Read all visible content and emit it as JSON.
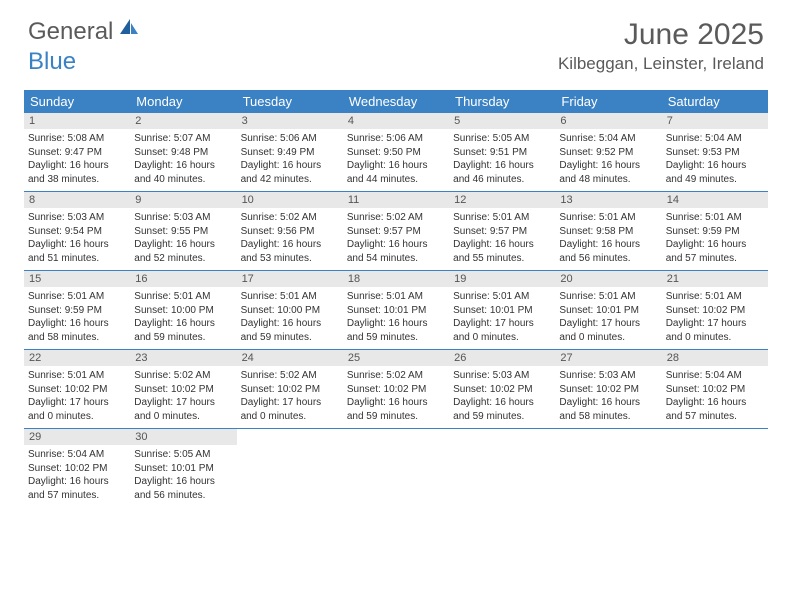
{
  "logo": {
    "text_general": "General",
    "text_blue": "Blue"
  },
  "title": {
    "month_year": "June 2025",
    "location": "Kilbeggan, Leinster, Ireland"
  },
  "colors": {
    "header_bg": "#3b82c4",
    "daynum_bg": "#e8e8e8",
    "text_dark": "#333333",
    "text_gray": "#5a5a5a",
    "logo_blue": "#3b82c4"
  },
  "table": {
    "type": "calendar",
    "weekdays": [
      "Sunday",
      "Monday",
      "Tuesday",
      "Wednesday",
      "Thursday",
      "Friday",
      "Saturday"
    ],
    "weeks": [
      [
        {
          "num": "1",
          "sunrise": "Sunrise: 5:08 AM",
          "sunset": "Sunset: 9:47 PM",
          "day1": "Daylight: 16 hours",
          "day2": "and 38 minutes."
        },
        {
          "num": "2",
          "sunrise": "Sunrise: 5:07 AM",
          "sunset": "Sunset: 9:48 PM",
          "day1": "Daylight: 16 hours",
          "day2": "and 40 minutes."
        },
        {
          "num": "3",
          "sunrise": "Sunrise: 5:06 AM",
          "sunset": "Sunset: 9:49 PM",
          "day1": "Daylight: 16 hours",
          "day2": "and 42 minutes."
        },
        {
          "num": "4",
          "sunrise": "Sunrise: 5:06 AM",
          "sunset": "Sunset: 9:50 PM",
          "day1": "Daylight: 16 hours",
          "day2": "and 44 minutes."
        },
        {
          "num": "5",
          "sunrise": "Sunrise: 5:05 AM",
          "sunset": "Sunset: 9:51 PM",
          "day1": "Daylight: 16 hours",
          "day2": "and 46 minutes."
        },
        {
          "num": "6",
          "sunrise": "Sunrise: 5:04 AM",
          "sunset": "Sunset: 9:52 PM",
          "day1": "Daylight: 16 hours",
          "day2": "and 48 minutes."
        },
        {
          "num": "7",
          "sunrise": "Sunrise: 5:04 AM",
          "sunset": "Sunset: 9:53 PM",
          "day1": "Daylight: 16 hours",
          "day2": "and 49 minutes."
        }
      ],
      [
        {
          "num": "8",
          "sunrise": "Sunrise: 5:03 AM",
          "sunset": "Sunset: 9:54 PM",
          "day1": "Daylight: 16 hours",
          "day2": "and 51 minutes."
        },
        {
          "num": "9",
          "sunrise": "Sunrise: 5:03 AM",
          "sunset": "Sunset: 9:55 PM",
          "day1": "Daylight: 16 hours",
          "day2": "and 52 minutes."
        },
        {
          "num": "10",
          "sunrise": "Sunrise: 5:02 AM",
          "sunset": "Sunset: 9:56 PM",
          "day1": "Daylight: 16 hours",
          "day2": "and 53 minutes."
        },
        {
          "num": "11",
          "sunrise": "Sunrise: 5:02 AM",
          "sunset": "Sunset: 9:57 PM",
          "day1": "Daylight: 16 hours",
          "day2": "and 54 minutes."
        },
        {
          "num": "12",
          "sunrise": "Sunrise: 5:01 AM",
          "sunset": "Sunset: 9:57 PM",
          "day1": "Daylight: 16 hours",
          "day2": "and 55 minutes."
        },
        {
          "num": "13",
          "sunrise": "Sunrise: 5:01 AM",
          "sunset": "Sunset: 9:58 PM",
          "day1": "Daylight: 16 hours",
          "day2": "and 56 minutes."
        },
        {
          "num": "14",
          "sunrise": "Sunrise: 5:01 AM",
          "sunset": "Sunset: 9:59 PM",
          "day1": "Daylight: 16 hours",
          "day2": "and 57 minutes."
        }
      ],
      [
        {
          "num": "15",
          "sunrise": "Sunrise: 5:01 AM",
          "sunset": "Sunset: 9:59 PM",
          "day1": "Daylight: 16 hours",
          "day2": "and 58 minutes."
        },
        {
          "num": "16",
          "sunrise": "Sunrise: 5:01 AM",
          "sunset": "Sunset: 10:00 PM",
          "day1": "Daylight: 16 hours",
          "day2": "and 59 minutes."
        },
        {
          "num": "17",
          "sunrise": "Sunrise: 5:01 AM",
          "sunset": "Sunset: 10:00 PM",
          "day1": "Daylight: 16 hours",
          "day2": "and 59 minutes."
        },
        {
          "num": "18",
          "sunrise": "Sunrise: 5:01 AM",
          "sunset": "Sunset: 10:01 PM",
          "day1": "Daylight: 16 hours",
          "day2": "and 59 minutes."
        },
        {
          "num": "19",
          "sunrise": "Sunrise: 5:01 AM",
          "sunset": "Sunset: 10:01 PM",
          "day1": "Daylight: 17 hours",
          "day2": "and 0 minutes."
        },
        {
          "num": "20",
          "sunrise": "Sunrise: 5:01 AM",
          "sunset": "Sunset: 10:01 PM",
          "day1": "Daylight: 17 hours",
          "day2": "and 0 minutes."
        },
        {
          "num": "21",
          "sunrise": "Sunrise: 5:01 AM",
          "sunset": "Sunset: 10:02 PM",
          "day1": "Daylight: 17 hours",
          "day2": "and 0 minutes."
        }
      ],
      [
        {
          "num": "22",
          "sunrise": "Sunrise: 5:01 AM",
          "sunset": "Sunset: 10:02 PM",
          "day1": "Daylight: 17 hours",
          "day2": "and 0 minutes."
        },
        {
          "num": "23",
          "sunrise": "Sunrise: 5:02 AM",
          "sunset": "Sunset: 10:02 PM",
          "day1": "Daylight: 17 hours",
          "day2": "and 0 minutes."
        },
        {
          "num": "24",
          "sunrise": "Sunrise: 5:02 AM",
          "sunset": "Sunset: 10:02 PM",
          "day1": "Daylight: 17 hours",
          "day2": "and 0 minutes."
        },
        {
          "num": "25",
          "sunrise": "Sunrise: 5:02 AM",
          "sunset": "Sunset: 10:02 PM",
          "day1": "Daylight: 16 hours",
          "day2": "and 59 minutes."
        },
        {
          "num": "26",
          "sunrise": "Sunrise: 5:03 AM",
          "sunset": "Sunset: 10:02 PM",
          "day1": "Daylight: 16 hours",
          "day2": "and 59 minutes."
        },
        {
          "num": "27",
          "sunrise": "Sunrise: 5:03 AM",
          "sunset": "Sunset: 10:02 PM",
          "day1": "Daylight: 16 hours",
          "day2": "and 58 minutes."
        },
        {
          "num": "28",
          "sunrise": "Sunrise: 5:04 AM",
          "sunset": "Sunset: 10:02 PM",
          "day1": "Daylight: 16 hours",
          "day2": "and 57 minutes."
        }
      ],
      [
        {
          "num": "29",
          "sunrise": "Sunrise: 5:04 AM",
          "sunset": "Sunset: 10:02 PM",
          "day1": "Daylight: 16 hours",
          "day2": "and 57 minutes."
        },
        {
          "num": "30",
          "sunrise": "Sunrise: 5:05 AM",
          "sunset": "Sunset: 10:01 PM",
          "day1": "Daylight: 16 hours",
          "day2": "and 56 minutes."
        },
        null,
        null,
        null,
        null,
        null
      ]
    ]
  }
}
